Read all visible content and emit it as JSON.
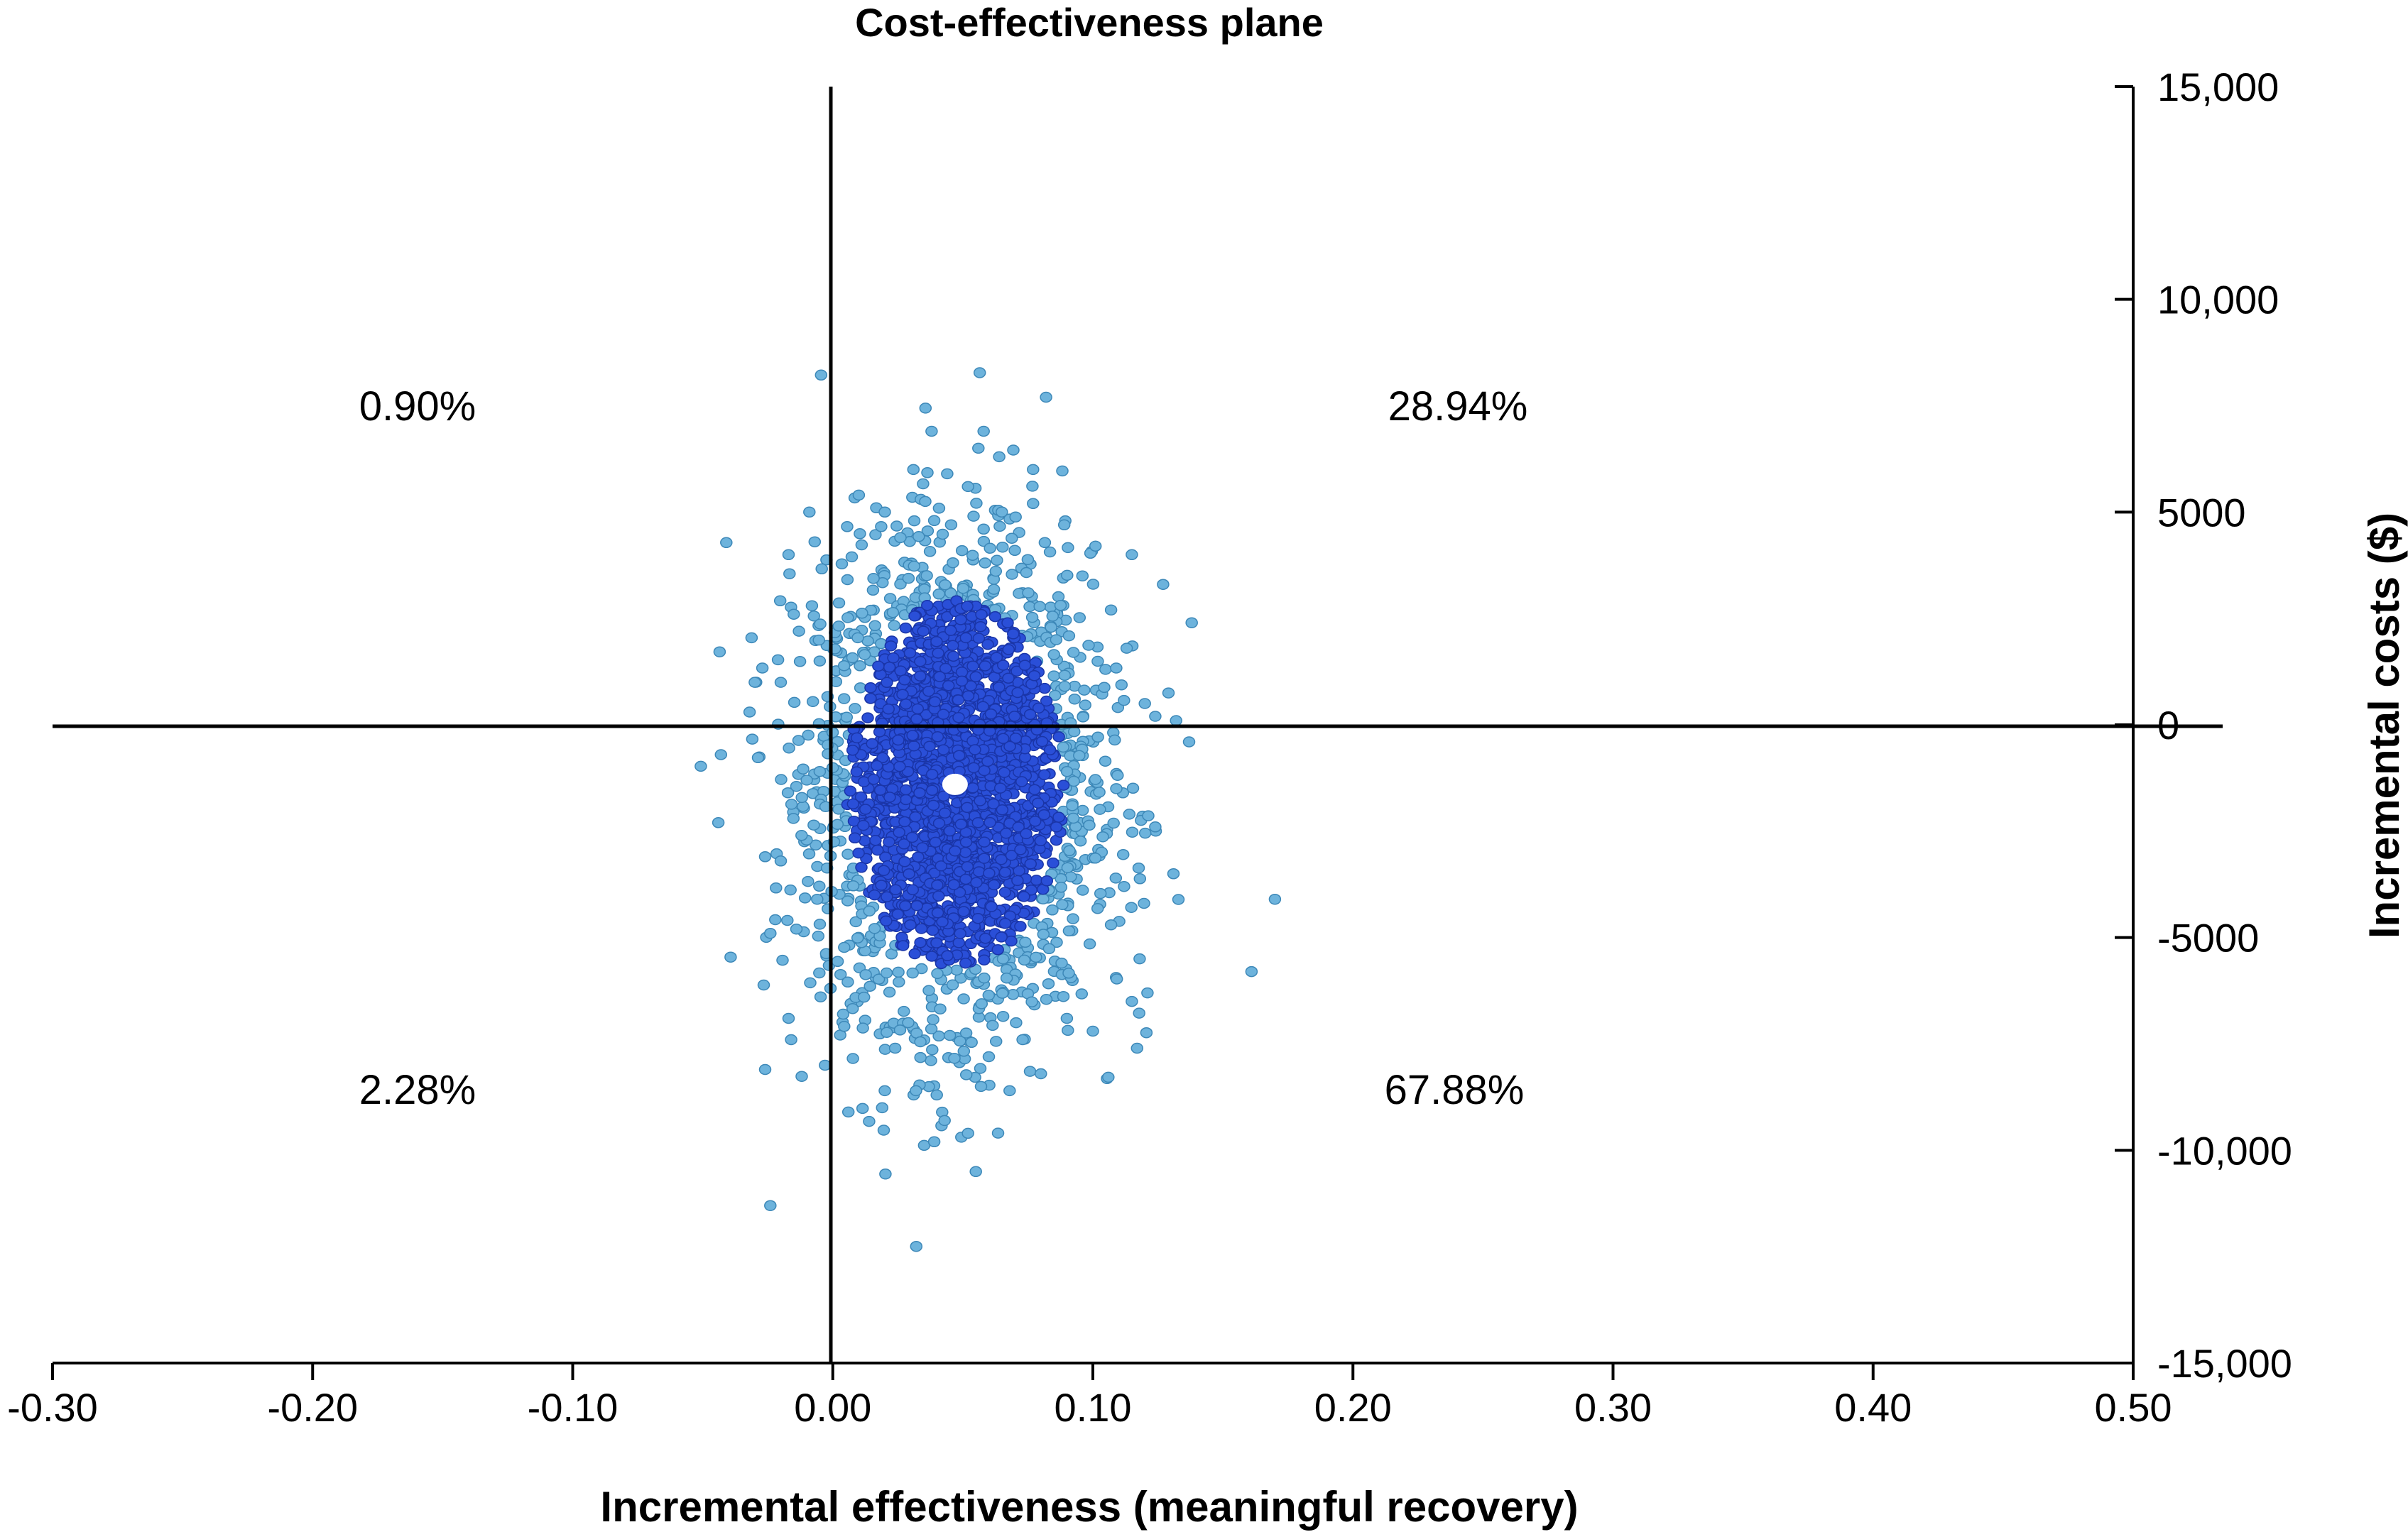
{
  "chart_data": {
    "type": "scatter",
    "title": "Cost-effectiveness plane",
    "xlabel": "Incremental effectiveness (meaningful recovery)",
    "ylabel": "Incremental costs ($)",
    "xlim": [
      -0.3,
      0.5
    ],
    "ylim": [
      -15000,
      15000
    ],
    "x_ticks": [
      -0.3,
      -0.2,
      -0.1,
      0.0,
      0.1,
      0.2,
      0.3,
      0.4,
      0.5
    ],
    "x_tick_labels": [
      "-0.30",
      "-0.20",
      "-0.10",
      "0.00",
      "0.10",
      "0.20",
      "0.30",
      "0.40",
      "0.50"
    ],
    "y_ticks": [
      15000,
      10000,
      5000,
      0,
      -5000,
      -10000,
      -15000
    ],
    "y_tick_labels": [
      "15,000",
      "10,000",
      "5000",
      "0",
      "-5000",
      "-10,000",
      "-15,000"
    ],
    "grid": false,
    "quadrant_labels": {
      "north_west": "0.90%",
      "north_east": "28.94%",
      "south_west": "2.28%",
      "south_east": "67.88%"
    },
    "mean_point": {
      "x": 0.047,
      "y": -1400
    },
    "point_colors": {
      "dense": "#2a4fd8",
      "sparse": "#6db3dc",
      "mean": "#ffffff"
    },
    "points": [
      {
        "x": 0.082,
        "y": 7700
      },
      {
        "x": 0.038,
        "y": 6900
      },
      {
        "x": 0.058,
        "y": 6900
      },
      {
        "x": 0.064,
        "y": 6300
      },
      {
        "x": 0.077,
        "y": 6000
      },
      {
        "x": 0.056,
        "y": 6500
      },
      {
        "x": 0.031,
        "y": 6000
      },
      {
        "x": 0.044,
        "y": 5900
      },
      {
        "x": 0.052,
        "y": 5600
      },
      {
        "x": 0.077,
        "y": 5200
      },
      {
        "x": 0.065,
        "y": 5000
      },
      {
        "x": -0.009,
        "y": 5000
      },
      {
        "x": 0.039,
        "y": 4800
      },
      {
        "x": 0.089,
        "y": 4700
      },
      {
        "x": 0.058,
        "y": 4600
      },
      {
        "x": 0.115,
        "y": 4000
      },
      {
        "x": 0.127,
        "y": 3300
      },
      {
        "x": 0.138,
        "y": 2400
      },
      {
        "x": 0.101,
        "y": 4200
      },
      {
        "x": -0.017,
        "y": 4000
      },
      {
        "x": -0.015,
        "y": 2600
      },
      {
        "x": -0.013,
        "y": 2200
      },
      {
        "x": -0.02,
        "y": 1000
      },
      {
        "x": -0.03,
        "y": 1000
      },
      {
        "x": -0.032,
        "y": 300
      },
      {
        "x": 0.12,
        "y": 500
      },
      {
        "x": 0.124,
        "y": 200
      },
      {
        "x": 0.132,
        "y": 100
      },
      {
        "x": 0.137,
        "y": -400
      },
      {
        "x": -0.043,
        "y": -700
      },
      {
        "x": -0.044,
        "y": -2300
      },
      {
        "x": -0.026,
        "y": -3100
      },
      {
        "x": -0.02,
        "y": -3200
      },
      {
        "x": -0.024,
        "y": -4900
      },
      {
        "x": -0.014,
        "y": -4800
      },
      {
        "x": 0.124,
        "y": -2400
      },
      {
        "x": 0.131,
        "y": -3500
      },
      {
        "x": 0.112,
        "y": -3800
      },
      {
        "x": 0.17,
        "y": -4100
      },
      {
        "x": 0.161,
        "y": -5800
      },
      {
        "x": 0.118,
        "y": -5500
      },
      {
        "x": 0.121,
        "y": -6300
      },
      {
        "x": 0.115,
        "y": -6500
      },
      {
        "x": 0.117,
        "y": -7600
      },
      {
        "x": 0.1,
        "y": -7200
      },
      {
        "x": -0.017,
        "y": -6900
      },
      {
        "x": -0.016,
        "y": -7400
      },
      {
        "x": -0.026,
        "y": -8100
      },
      {
        "x": -0.003,
        "y": -8000
      },
      {
        "x": 0.006,
        "y": -9100
      },
      {
        "x": 0.019,
        "y": -9000
      },
      {
        "x": 0.032,
        "y": -8600
      },
      {
        "x": 0.04,
        "y": -8700
      },
      {
        "x": 0.043,
        "y": -9300
      },
      {
        "x": 0.039,
        "y": -9800
      },
      {
        "x": 0.052,
        "y": -9600
      },
      {
        "x": 0.055,
        "y": -10500
      },
      {
        "x": 0.057,
        "y": -8500
      },
      {
        "x": 0.068,
        "y": -8600
      },
      {
        "x": 0.08,
        "y": -8200
      },
      {
        "x": -0.024,
        "y": -11300
      },
      {
        "x": 0.02,
        "y": -8600
      },
      {
        "x": 0.024,
        "y": -7600
      },
      {
        "x": 0.06,
        "y": -7800
      },
      {
        "x": 0.09,
        "y": -6900
      },
      {
        "x": 0.004,
        "y": -6800
      },
      {
        "x": 0.01,
        "y": 5400
      },
      {
        "x": 0.02,
        "y": 5000
      },
      {
        "x": 0.026,
        "y": 4400
      },
      {
        "x": 0.07,
        "y": 4100
      },
      {
        "x": 0.096,
        "y": 3500
      },
      {
        "x": 0.107,
        "y": 2700
      },
      {
        "x": 0.113,
        "y": 1800
      },
      {
        "x": -0.008,
        "y": 2800
      },
      {
        "x": -0.005,
        "y": 1500
      },
      {
        "x": -0.01,
        "y": -1300
      },
      {
        "x": -0.012,
        "y": -2600
      },
      {
        "x": -0.006,
        "y": -4100
      },
      {
        "x": 0.109,
        "y": -1500
      },
      {
        "x": 0.107,
        "y": -4700
      },
      {
        "x": 0.088,
        "y": -5600
      },
      {
        "x": 0.012,
        "y": -6400
      },
      {
        "x": 0.029,
        "y": -7000
      },
      {
        "x": 0.045,
        "y": -7300
      },
      {
        "x": 0.073,
        "y": -7400
      }
    ]
  }
}
